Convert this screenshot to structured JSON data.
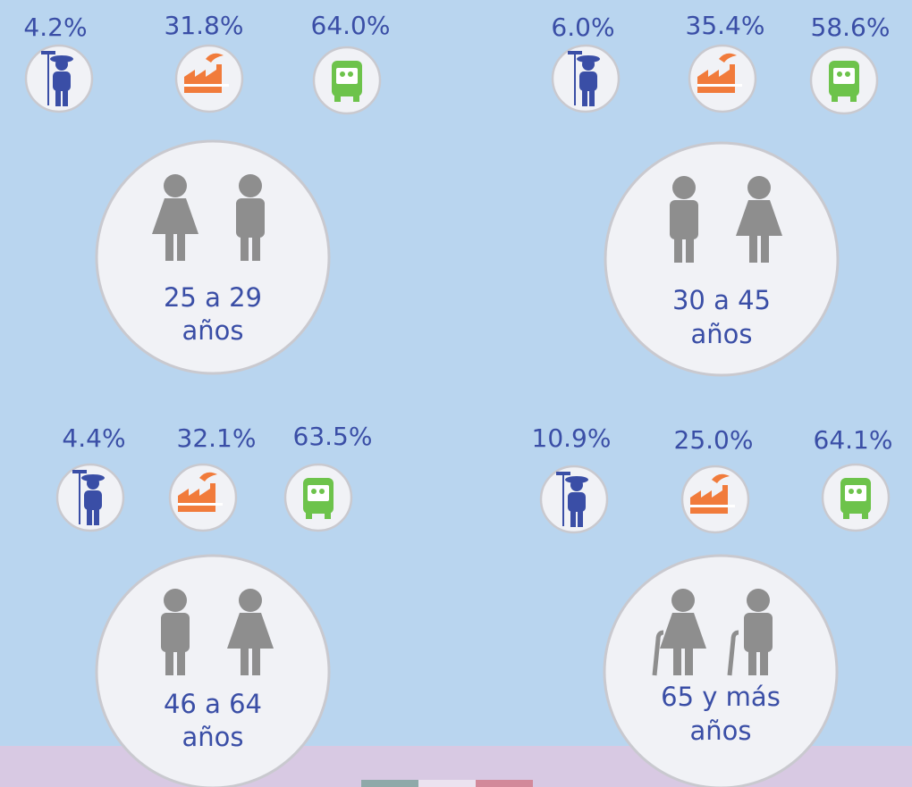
{
  "groups": [
    {
      "shares": [
        "4.2%",
        "31.8%",
        "64.0%"
      ],
      "age_label": [
        "25 a 29",
        "años"
      ]
    },
    {
      "shares": [
        "6.0%",
        "35.4%",
        "58.6%"
      ],
      "age_label": [
        "30 a 45",
        "años"
      ]
    },
    {
      "shares": [
        "4.4%",
        "32.1%",
        "63.5%"
      ],
      "age_label": [
        "46 a 64",
        "años"
      ]
    },
    {
      "shares": [
        "10.9%",
        "25.0%",
        "64.1%"
      ],
      "age_label": [
        "65 y más",
        "años"
      ]
    }
  ]
}
